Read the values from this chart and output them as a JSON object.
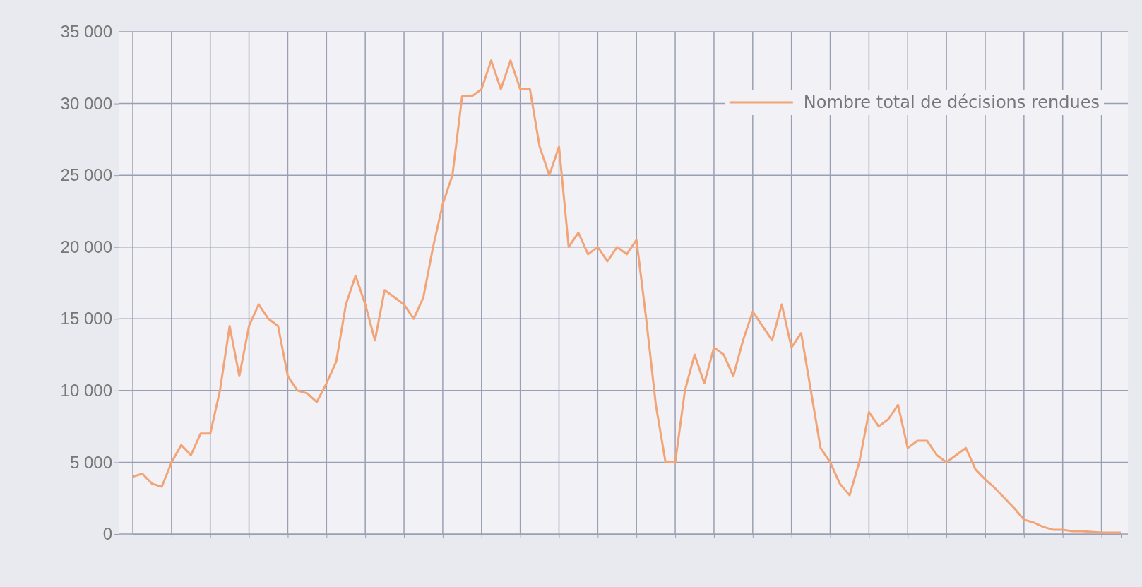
{
  "chart_data": {
    "type": "line",
    "categories": [
      null,
      null,
      null,
      null,
      null,
      null,
      null,
      null,
      null,
      null,
      null,
      null,
      null,
      null,
      null,
      null,
      null,
      null,
      null,
      null,
      null,
      null,
      null,
      null,
      null,
      null,
      null,
      null,
      null,
      null,
      null,
      null,
      null,
      null,
      null,
      null,
      null,
      null,
      null,
      null,
      null,
      null,
      null,
      null,
      null,
      null,
      null,
      null,
      null,
      null,
      null,
      null,
      null,
      null,
      null,
      null,
      null,
      null,
      null,
      null,
      null,
      null,
      null,
      null,
      null,
      null,
      null,
      null,
      null,
      null,
      null,
      null,
      null,
      null,
      null,
      null,
      null,
      null,
      null,
      null,
      null,
      null,
      null,
      null,
      null,
      null,
      null,
      null,
      null,
      null,
      null,
      null,
      null,
      null,
      null,
      null,
      null,
      null,
      null,
      null,
      null,
      null,
      null
    ],
    "series": [
      {
        "name": "Nombre total de décisions rendues",
        "color": "#f2a477",
        "values": [
          4000,
          4200,
          3500,
          3300,
          5000,
          6200,
          5500,
          7000,
          7000,
          10000,
          14500,
          11000,
          14500,
          16000,
          15000,
          14500,
          11000,
          10000,
          9800,
          9200,
          10500,
          12000,
          16000,
          18000,
          16000,
          13500,
          17000,
          16500,
          16000,
          15000,
          16500,
          20000,
          23000,
          25000,
          30500,
          30500,
          31000,
          33000,
          31000,
          33000,
          31000,
          31000,
          27000,
          25000,
          27000,
          20000,
          21000,
          19500,
          20000,
          19000,
          20000,
          19500,
          20500,
          15000,
          9000,
          5000,
          5000,
          10000,
          12500,
          10500,
          13000,
          12500,
          11000,
          13500,
          15500,
          14500,
          13500,
          16000,
          13000,
          14000,
          10000,
          6000,
          5000,
          3500,
          2700,
          5000,
          8500,
          7500,
          8000,
          9000,
          6000,
          6500,
          6500,
          5500,
          5000,
          5500,
          6000,
          4500,
          3800,
          3200,
          2500,
          1800,
          1000,
          800,
          500,
          300,
          300,
          200,
          200,
          150,
          100,
          100,
          100
        ]
      }
    ],
    "ylim": [
      0,
      35000
    ],
    "yticks": [
      0,
      {
        "value": 5000,
        "label": "5 000"
      },
      {
        "value": 10000,
        "label": "10 000"
      },
      {
        "value": 15000,
        "label": "15 000"
      },
      {
        "value": 20000,
        "label": "20 000"
      },
      {
        "value": 25000,
        "label": "25 000"
      },
      {
        "value": 30000,
        "label": "30 000"
      },
      {
        "value": 35000,
        "label": "35 000"
      }
    ],
    "grid": true,
    "legend": "top right",
    "line_style": "solid",
    "marker": "none"
  }
}
